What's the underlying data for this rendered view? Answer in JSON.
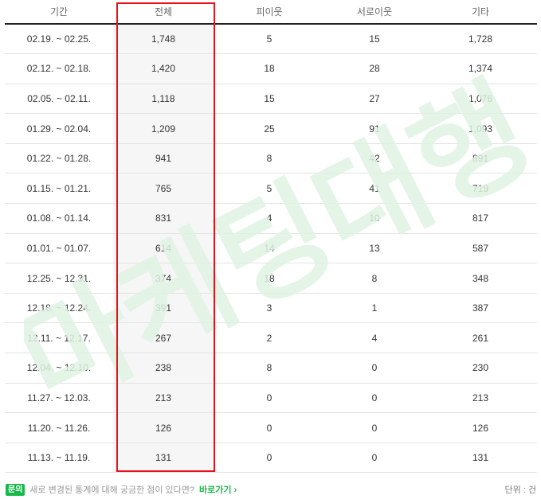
{
  "table": {
    "headers": [
      "기간",
      "전체",
      "피이웃",
      "서로이웃",
      "기타"
    ],
    "rows": [
      [
        "02.19. ~ 02.25.",
        "1,748",
        "5",
        "15",
        "1,728"
      ],
      [
        "02.12. ~ 02.18.",
        "1,420",
        "18",
        "28",
        "1,374"
      ],
      [
        "02.05. ~ 02.11.",
        "1,118",
        "15",
        "27",
        "1,076"
      ],
      [
        "01.29. ~ 02.04.",
        "1,209",
        "25",
        "91",
        "1,093"
      ],
      [
        "01.22. ~ 01.28.",
        "941",
        "8",
        "42",
        "891"
      ],
      [
        "01.15. ~ 01.21.",
        "765",
        "5",
        "41",
        "719"
      ],
      [
        "01.08. ~ 01.14.",
        "831",
        "4",
        "10",
        "817"
      ],
      [
        "01.01. ~ 01.07.",
        "614",
        "14",
        "13",
        "587"
      ],
      [
        "12.25. ~ 12.31.",
        "374",
        "18",
        "8",
        "348"
      ],
      [
        "12.18. ~ 12.24.",
        "391",
        "3",
        "1",
        "387"
      ],
      [
        "12.11. ~ 12.17.",
        "267",
        "2",
        "4",
        "261"
      ],
      [
        "12.04. ~ 12.10.",
        "238",
        "8",
        "0",
        "230"
      ],
      [
        "11.27. ~ 12.03.",
        "213",
        "0",
        "0",
        "213"
      ],
      [
        "11.20. ~ 11.26.",
        "126",
        "0",
        "0",
        "126"
      ],
      [
        "11.13. ~ 11.19.",
        "131",
        "0",
        "0",
        "131"
      ]
    ]
  },
  "watermark": {
    "text": "마케팅대행",
    "color": "#dff3e4"
  },
  "highlight": {
    "color": "#e8111b"
  },
  "footer": {
    "badge": "문의",
    "question": "새로 변경된 통계에 대해 궁금한 점이 있다면?",
    "link_label": "바로가기",
    "link_icon": "chevron-right-icon",
    "link_chevron": "›",
    "unit": "단위 : 건"
  },
  "colors": {
    "accent": "#19b84b",
    "highlight_border": "#e8111b"
  }
}
